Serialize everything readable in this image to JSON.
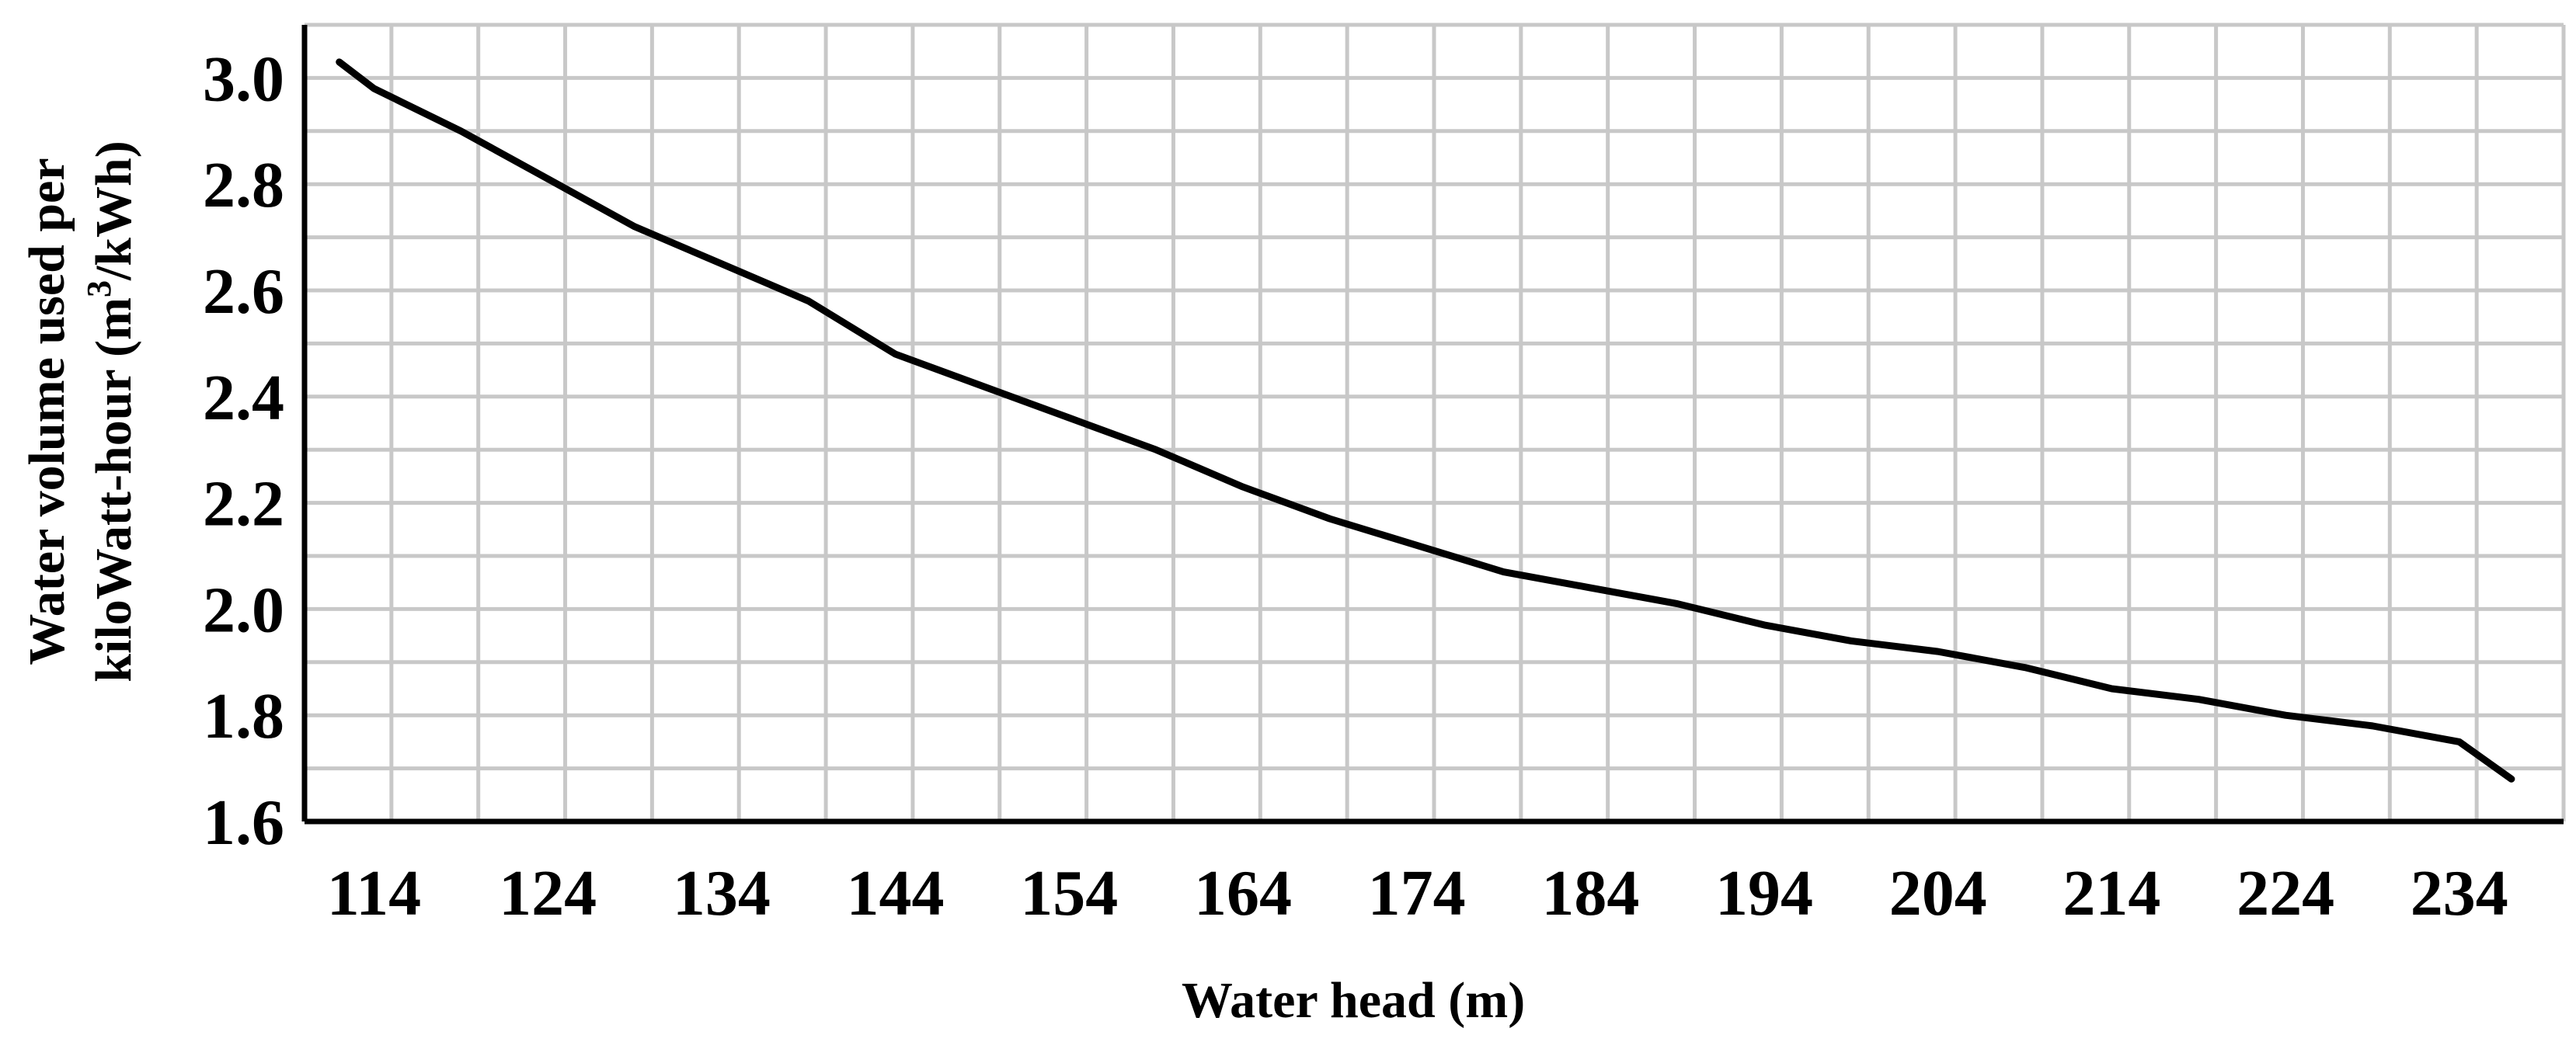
{
  "chart_data": {
    "type": "line",
    "title": "",
    "xlabel": "Water head (m)",
    "ylabel": {
      "line1": "Water volume used per",
      "line2_prefix": "kiloWatt-hour (m",
      "line2_sup": "3",
      "line2_suffix": "/kWh)"
    },
    "xlim": [
      110,
      240
    ],
    "ylim": [
      1.6,
      3.1
    ],
    "x_ticks": [
      114,
      124,
      134,
      144,
      154,
      164,
      174,
      184,
      194,
      204,
      214,
      224,
      234
    ],
    "y_ticks": [
      1.6,
      1.8,
      2.0,
      2.2,
      2.4,
      2.6,
      2.8,
      3.0
    ],
    "y_tick_labels": [
      "1.6",
      "1.8",
      "2.0",
      "2.2",
      "2.4",
      "2.6",
      "2.8",
      "3.0"
    ],
    "grid": true,
    "series": [
      {
        "name": "Water volume per kWh",
        "color": "#000000",
        "x": [
          112,
          114,
          119,
          124,
          129,
          134,
          139,
          144,
          149,
          154,
          159,
          164,
          169,
          174,
          179,
          184,
          189,
          194,
          199,
          204,
          209,
          214,
          219,
          224,
          229,
          234,
          237
        ],
        "y": [
          3.03,
          2.98,
          2.9,
          2.81,
          2.72,
          2.65,
          2.58,
          2.48,
          2.42,
          2.36,
          2.3,
          2.23,
          2.17,
          2.12,
          2.07,
          2.04,
          2.01,
          1.97,
          1.94,
          1.92,
          1.89,
          1.85,
          1.83,
          1.8,
          1.78,
          1.75,
          1.68
        ]
      }
    ]
  }
}
